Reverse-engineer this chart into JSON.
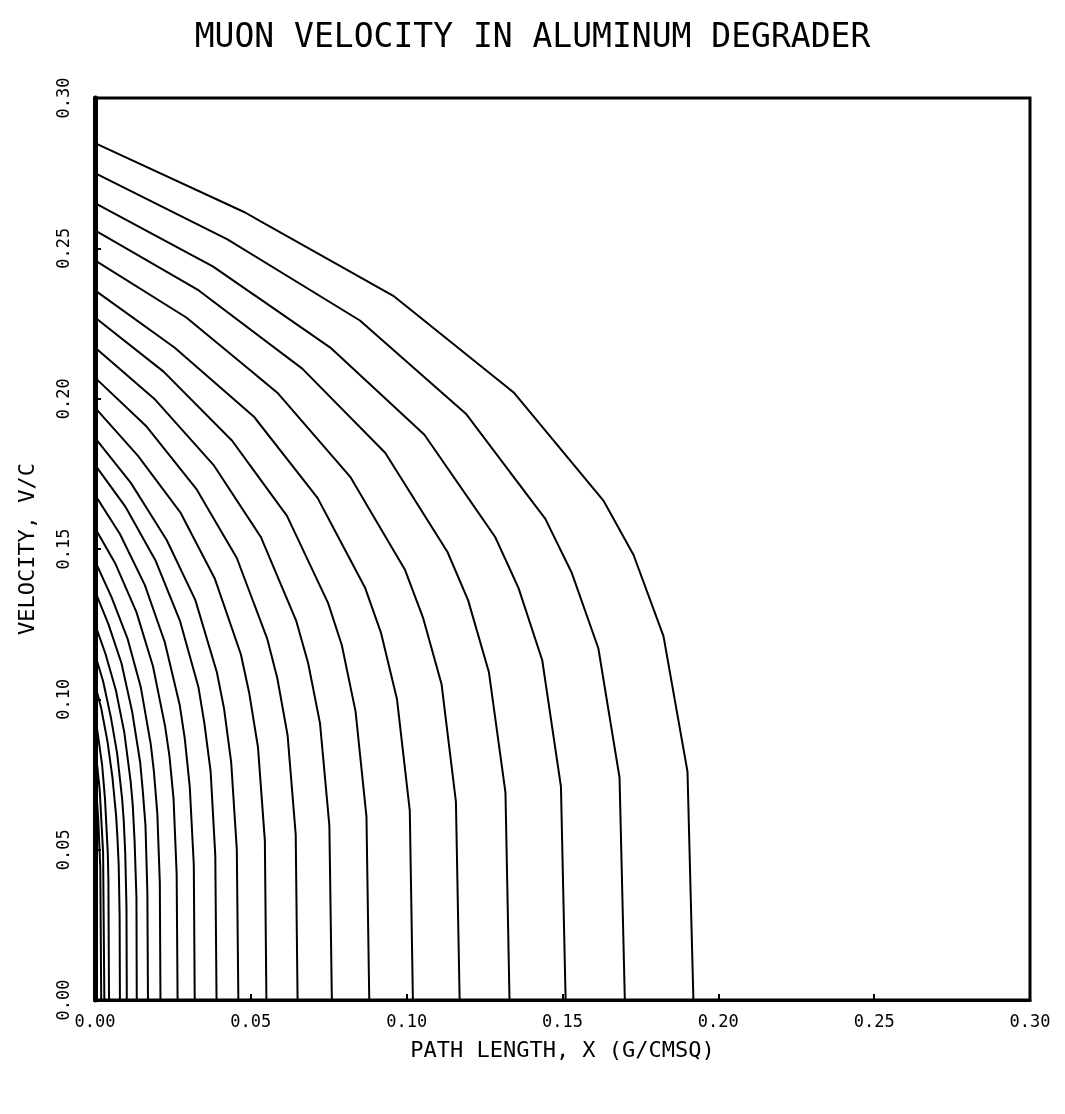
{
  "chart_data": {
    "type": "line",
    "title": "MUON VELOCITY IN ALUMINUM DEGRADER",
    "xlabel": "PATH LENGTH, X (G/CMSQ)",
    "ylabel": "VELOCITY, V/C",
    "xlim": [
      0,
      0.3
    ],
    "ylim": [
      0,
      0.3
    ],
    "xticks": [
      {
        "value": 0,
        "label": "0.00"
      },
      {
        "value": 0.05,
        "label": "0.05"
      },
      {
        "value": 0.1,
        "label": "0.10"
      },
      {
        "value": 0.15,
        "label": "0.15"
      },
      {
        "value": 0.2,
        "label": "0.20"
      },
      {
        "value": 0.25,
        "label": "0.25"
      },
      {
        "value": 0.3,
        "label": "0.30"
      }
    ],
    "yticks": [
      {
        "value": 0,
        "label": "0.00"
      },
      {
        "value": 0.05,
        "label": "0.05"
      },
      {
        "value": 0.1,
        "label": "0.10"
      },
      {
        "value": 0.15,
        "label": "0.15"
      },
      {
        "value": 0.2,
        "label": "0.20"
      },
      {
        "value": 0.25,
        "label": "0.25"
      },
      {
        "value": 0.3,
        "label": "0.30"
      }
    ],
    "grid": false,
    "marker": "none",
    "line_style": "solid",
    "series": [
      {
        "color": "#000000",
        "x": [
          0,
          0.048,
          0.096,
          0.1344,
          0.1632,
          0.1728,
          0.1824,
          0.1901,
          0.192
        ],
        "values": [
          0.285,
          0.262,
          0.234,
          0.202,
          0.166,
          0.148,
          0.121,
          0.076,
          0
        ]
      },
      {
        "color": "#000000",
        "x": [
          0,
          0.0425,
          0.085,
          0.119,
          0.1445,
          0.153,
          0.1615,
          0.1683,
          0.17
        ],
        "values": [
          0.275,
          0.253,
          0.226,
          0.195,
          0.16,
          0.142,
          0.117,
          0.074,
          0
        ]
      },
      {
        "color": "#000000",
        "x": [
          0,
          0.0378,
          0.0755,
          0.1057,
          0.1284,
          0.1359,
          0.1435,
          0.1495,
          0.151
        ],
        "values": [
          0.265,
          0.244,
          0.217,
          0.188,
          0.154,
          0.137,
          0.113,
          0.071,
          0
        ]
      },
      {
        "color": "#000000",
        "x": [
          0,
          0.0333,
          0.0665,
          0.0931,
          0.1131,
          0.1197,
          0.1264,
          0.1317,
          0.133
        ],
        "values": [
          0.256,
          0.236,
          0.21,
          0.182,
          0.149,
          0.133,
          0.109,
          0.069,
          0
        ]
      },
      {
        "color": "#000000",
        "x": [
          0,
          0.0293,
          0.0585,
          0.0819,
          0.0995,
          0.1053,
          0.1112,
          0.1158,
          0.117
        ],
        "values": [
          0.246,
          0.227,
          0.202,
          0.174,
          0.143,
          0.127,
          0.105,
          0.066,
          0
        ]
      },
      {
        "color": "#000000",
        "x": [
          0,
          0.0255,
          0.051,
          0.0714,
          0.0867,
          0.0918,
          0.0969,
          0.101,
          0.102
        ],
        "values": [
          0.236,
          0.217,
          0.194,
          0.167,
          0.137,
          0.122,
          0.1,
          0.063,
          0
        ]
      },
      {
        "color": "#000000",
        "x": [
          0,
          0.022,
          0.044,
          0.0616,
          0.0748,
          0.0792,
          0.0836,
          0.0871,
          0.088
        ],
        "values": [
          0.227,
          0.209,
          0.186,
          0.161,
          0.132,
          0.118,
          0.096,
          0.061,
          0
        ]
      },
      {
        "color": "#000000",
        "x": [
          0,
          0.019,
          0.038,
          0.0532,
          0.0646,
          0.0684,
          0.0722,
          0.0752,
          0.076
        ],
        "values": [
          0.217,
          0.2,
          0.178,
          0.154,
          0.126,
          0.112,
          0.092,
          0.058,
          0
        ]
      },
      {
        "color": "#000000",
        "x": [
          0,
          0.0163,
          0.0325,
          0.0455,
          0.0553,
          0.0585,
          0.0618,
          0.0644,
          0.065
        ],
        "values": [
          0.207,
          0.191,
          0.17,
          0.147,
          0.12,
          0.107,
          0.088,
          0.055,
          0
        ]
      },
      {
        "color": "#000000",
        "x": [
          0,
          0.0138,
          0.0275,
          0.0385,
          0.0468,
          0.0495,
          0.0523,
          0.0545,
          0.055
        ],
        "values": [
          0.197,
          0.181,
          0.162,
          0.14,
          0.115,
          0.102,
          0.084,
          0.053,
          0
        ]
      },
      {
        "color": "#000000",
        "x": [
          0,
          0.0115,
          0.023,
          0.0322,
          0.0391,
          0.0414,
          0.0437,
          0.0455,
          0.046
        ],
        "values": [
          0.187,
          0.172,
          0.153,
          0.133,
          0.109,
          0.097,
          0.079,
          0.05,
          0
        ]
      },
      {
        "color": "#000000",
        "x": [
          0,
          0.0098,
          0.0195,
          0.0273,
          0.0332,
          0.0351,
          0.0371,
          0.0386,
          0.039
        ],
        "values": [
          0.178,
          0.164,
          0.146,
          0.126,
          0.104,
          0.092,
          0.076,
          0.048,
          0
        ]
      },
      {
        "color": "#000000",
        "x": [
          0,
          0.008,
          0.016,
          0.0224,
          0.0272,
          0.0288,
          0.0304,
          0.0317,
          0.032
        ],
        "values": [
          0.168,
          0.155,
          0.138,
          0.119,
          0.098,
          0.087,
          0.071,
          0.045,
          0
        ]
      },
      {
        "color": "#000000",
        "x": [
          0,
          0.0066,
          0.0133,
          0.0186,
          0.0225,
          0.0239,
          0.0252,
          0.0262,
          0.0265
        ],
        "values": [
          0.157,
          0.145,
          0.129,
          0.111,
          0.091,
          0.081,
          0.067,
          0.042,
          0
        ]
      },
      {
        "color": "#000000",
        "x": [
          0,
          0.0053,
          0.0105,
          0.0147,
          0.0179,
          0.0189,
          0.02,
          0.0208,
          0.021
        ],
        "values": [
          0.146,
          0.134,
          0.12,
          0.104,
          0.085,
          0.076,
          0.062,
          0.039,
          0
        ]
      },
      {
        "color": "#000000",
        "x": [
          0,
          0.0043,
          0.0085,
          0.0119,
          0.0145,
          0.0153,
          0.0162,
          0.0168,
          0.017
        ],
        "values": [
          0.136,
          0.125,
          0.112,
          0.096,
          0.079,
          0.07,
          0.058,
          0.036,
          0
        ]
      },
      {
        "color": "#000000",
        "x": [
          0,
          0.0034,
          0.0067,
          0.0094,
          0.0114,
          0.0121,
          0.0127,
          0.0133,
          0.0134
        ],
        "values": [
          0.125,
          0.115,
          0.103,
          0.089,
          0.073,
          0.065,
          0.053,
          0.034,
          0
        ]
      },
      {
        "color": "#000000",
        "x": [
          0,
          0.0026,
          0.0051,
          0.0071,
          0.0087,
          0.0092,
          0.0097,
          0.0101,
          0.0102
        ],
        "values": [
          0.115,
          0.106,
          0.094,
          0.082,
          0.067,
          0.06,
          0.049,
          0.031,
          0
        ]
      },
      {
        "color": "#000000",
        "x": [
          0,
          0.002,
          0.004,
          0.0056,
          0.0068,
          0.0072,
          0.0076,
          0.0079,
          0.008
        ],
        "values": [
          0.105,
          0.097,
          0.086,
          0.074,
          0.061,
          0.054,
          0.045,
          0.028,
          0
        ]
      },
      {
        "color": "#000000",
        "x": [
          0,
          0.0011,
          0.0023,
          0.0032,
          0.0038,
          0.0041,
          0.0043,
          0.0045
        ],
        "values": [
          0.095,
          0.087,
          0.078,
          0.067,
          0.055,
          0.049,
          0.04,
          0
        ]
      },
      {
        "color": "#000000",
        "x": [
          0,
          0.0015,
          0.0026,
          0.003
        ],
        "values": [
          0.085,
          0.07,
          0.049,
          0
        ]
      },
      {
        "color": "#000000",
        "x": [
          0,
          0.001,
          0.0017,
          0.002
        ],
        "values": [
          0.075,
          0.061,
          0.044,
          0
        ]
      }
    ]
  }
}
